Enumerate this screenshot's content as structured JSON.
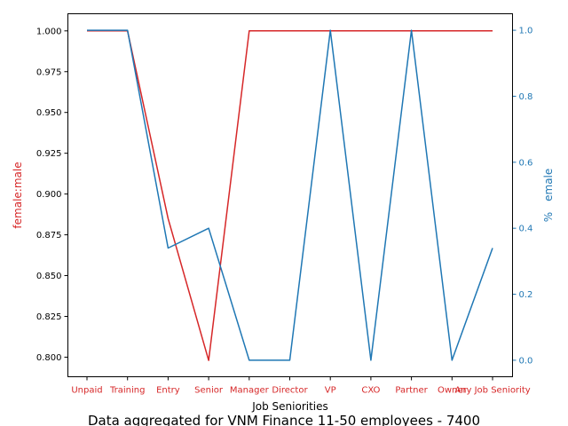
{
  "chart_data": {
    "type": "line",
    "title": "Data aggregated for VNM Finance 11-50 employees - 7400",
    "xlabel": "Job Seniorities",
    "categories": [
      "Unpaid",
      "Training",
      "Entry",
      "Senior",
      "Manager",
      "Director",
      "VP",
      "CXO",
      "Partner",
      "Owner",
      "Any Job Seniority"
    ],
    "series": [
      {
        "name": "female:male",
        "axis": "left",
        "color": "#d62728",
        "values": [
          1.0,
          1.0,
          0.885,
          0.798,
          1.0,
          1.0,
          1.0,
          1.0,
          1.0,
          1.0,
          1.0
        ]
      },
      {
        "name": "%female",
        "axis": "right",
        "color": "#1f77b4",
        "values": [
          1.0,
          1.0,
          0.34,
          0.4,
          0.0,
          0.0,
          1.0,
          0.0,
          1.0,
          0.0,
          0.34
        ]
      }
    ],
    "y_left": {
      "label": "female:male",
      "color": "#d62728",
      "range": [
        0.788,
        1.0105
      ],
      "ticks": [
        0.8,
        0.825,
        0.85,
        0.875,
        0.9,
        0.925,
        0.95,
        0.975,
        1.0
      ],
      "tick_labels": [
        "0.800",
        "0.825",
        "0.850",
        "0.875",
        "0.900",
        "0.925",
        "0.950",
        "0.975",
        "1.000"
      ]
    },
    "y_right": {
      "label": "% emale",
      "color": "#1f77b4",
      "range": [
        -0.05,
        1.05
      ],
      "ticks": [
        0.0,
        0.2,
        0.4,
        0.6,
        0.8,
        1.0
      ],
      "tick_labels": [
        "0.0",
        "0.2",
        "0.4",
        "0.6",
        "0.8",
        "1.0"
      ]
    },
    "grid": false,
    "legend": "none"
  }
}
